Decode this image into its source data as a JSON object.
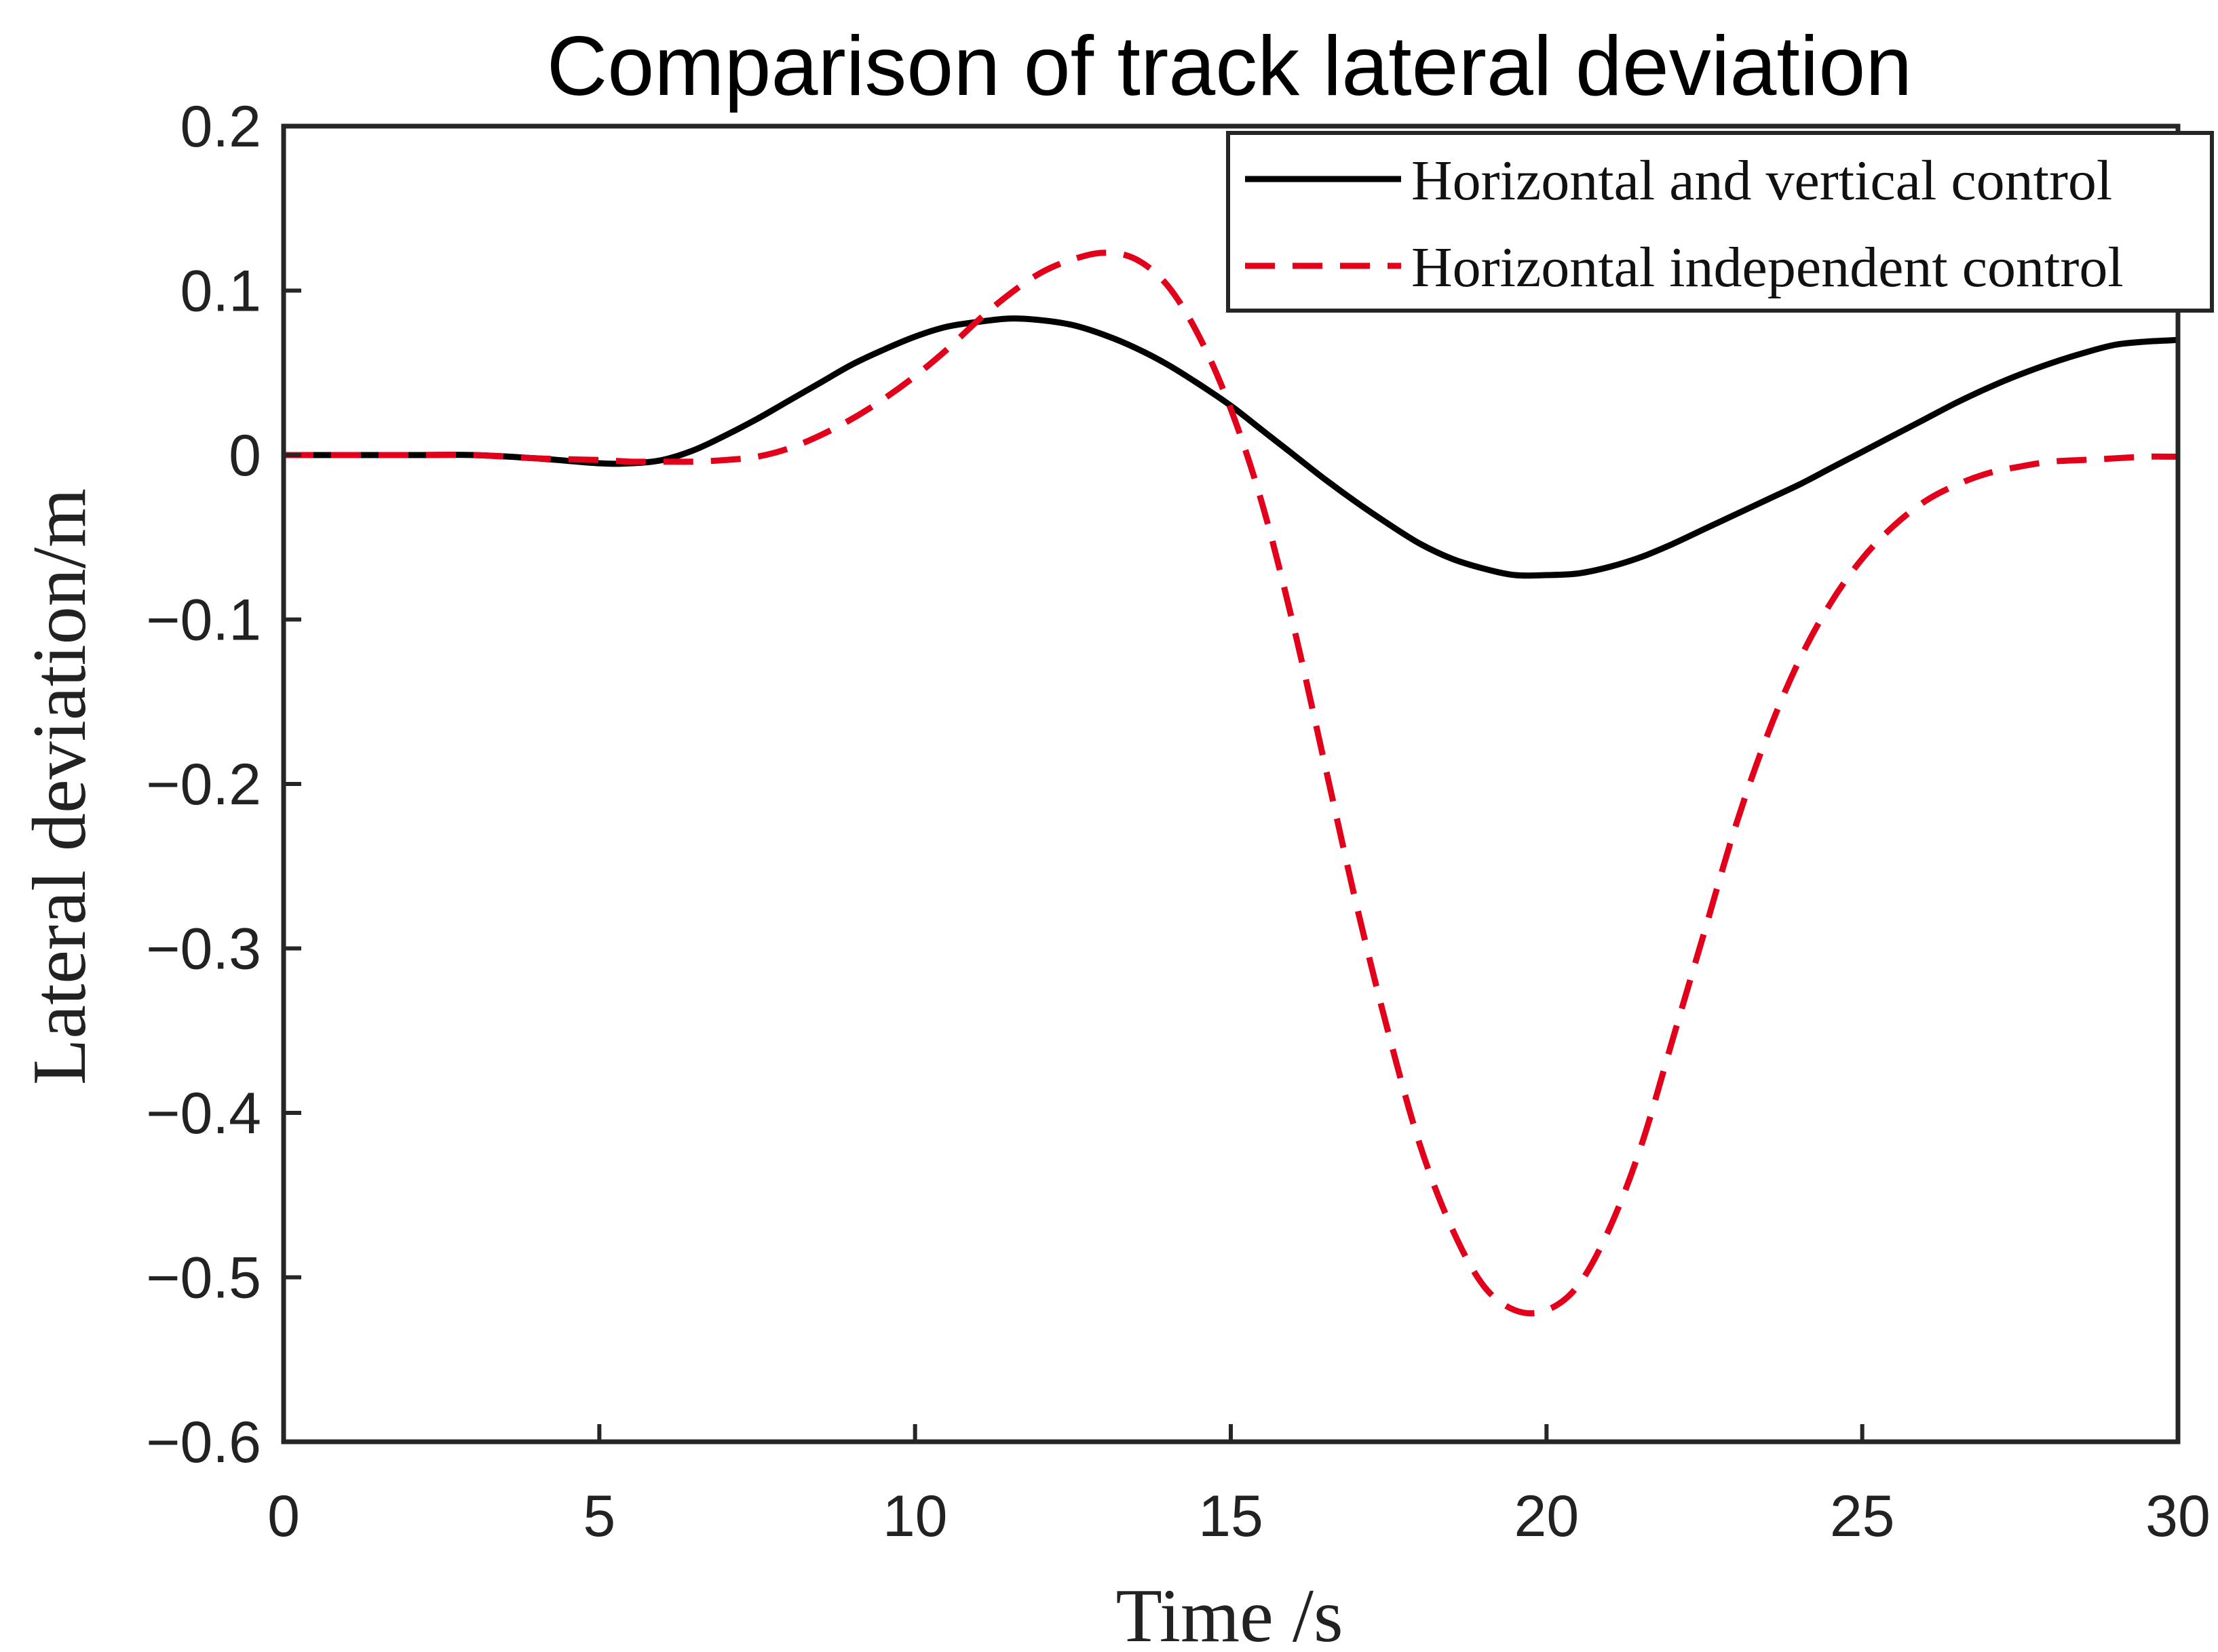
{
  "chart_data": {
    "type": "line",
    "title": "Comparison of track lateral deviation",
    "xlabel": "Time /s",
    "ylabel": "Lateral deviation/m",
    "xlim": [
      0,
      30
    ],
    "ylim": [
      -0.6,
      0.2
    ],
    "xticks": [
      0,
      5,
      10,
      15,
      20,
      25,
      30
    ],
    "xtick_labels": [
      "0",
      "5",
      "10",
      "15",
      "20",
      "25",
      "30"
    ],
    "yticks": [
      0.2,
      0.1,
      0,
      -0.1,
      -0.2,
      -0.3,
      -0.4,
      -0.5,
      -0.6
    ],
    "ytick_labels": [
      "0.2",
      "0.1",
      "0",
      "−0.1",
      "−0.2",
      "−0.3",
      "−0.4",
      "−0.5",
      "−0.6"
    ],
    "grid": false,
    "legend_position": "top-right",
    "series": [
      {
        "name": "Horizontal and vertical control",
        "color": "#000000",
        "style": "solid",
        "x": [
          0,
          1,
          2,
          3,
          4,
          5,
          5.5,
          6,
          6.5,
          7,
          7.5,
          8,
          8.5,
          9,
          9.5,
          10,
          10.5,
          11,
          11.5,
          12,
          12.5,
          13,
          13.5,
          14,
          14.5,
          15,
          15.5,
          16,
          16.5,
          17,
          17.5,
          18,
          18.5,
          19,
          19.5,
          20,
          20.5,
          21,
          21.5,
          22,
          22.5,
          23,
          23.5,
          24,
          24.5,
          25,
          25.5,
          26,
          26.5,
          27,
          27.5,
          28,
          28.5,
          29,
          29.5,
          30
        ],
        "y": [
          0,
          0,
          0,
          0,
          -0.002,
          -0.005,
          -0.005,
          -0.003,
          0.003,
          0.012,
          0.022,
          0.033,
          0.044,
          0.055,
          0.064,
          0.072,
          0.078,
          0.081,
          0.083,
          0.082,
          0.079,
          0.073,
          0.065,
          0.055,
          0.043,
          0.03,
          0.015,
          0.0,
          -0.015,
          -0.029,
          -0.042,
          -0.054,
          -0.063,
          -0.069,
          -0.073,
          -0.073,
          -0.072,
          -0.068,
          -0.062,
          -0.054,
          -0.045,
          -0.036,
          -0.027,
          -0.018,
          -0.008,
          0.002,
          0.012,
          0.022,
          0.032,
          0.041,
          0.049,
          0.056,
          0.062,
          0.067,
          0.069,
          0.07
        ]
      },
      {
        "name": "Horizontal independent control",
        "color": "#e2001a",
        "style": "dashed",
        "x": [
          0,
          1,
          2,
          3,
          4,
          5,
          5.5,
          6,
          6.5,
          7,
          7.5,
          8,
          8.5,
          9,
          9.5,
          10,
          10.5,
          11,
          11.5,
          12,
          12.5,
          13,
          13.5,
          14,
          14.5,
          15,
          15.5,
          16,
          16.5,
          17,
          17.5,
          18,
          18.5,
          19,
          19.5,
          20,
          20.5,
          21,
          21.5,
          22,
          22.5,
          23,
          23.5,
          24,
          24.5,
          25,
          25.5,
          26,
          26.5,
          27,
          27.5,
          28,
          28.5,
          29,
          29.5,
          30
        ],
        "y": [
          0,
          0,
          0,
          0,
          -0.002,
          -0.003,
          -0.004,
          -0.004,
          -0.004,
          -0.003,
          -0.001,
          0.004,
          0.012,
          0.022,
          0.034,
          0.048,
          0.064,
          0.082,
          0.098,
          0.111,
          0.119,
          0.123,
          0.119,
          0.103,
          0.072,
          0.028,
          -0.03,
          -0.105,
          -0.19,
          -0.275,
          -0.352,
          -0.42,
          -0.47,
          -0.505,
          -0.52,
          -0.52,
          -0.505,
          -0.47,
          -0.42,
          -0.355,
          -0.29,
          -0.225,
          -0.17,
          -0.125,
          -0.09,
          -0.063,
          -0.043,
          -0.028,
          -0.018,
          -0.011,
          -0.007,
          -0.004,
          -0.003,
          -0.002,
          -0.001,
          -0.001
        ]
      }
    ]
  }
}
